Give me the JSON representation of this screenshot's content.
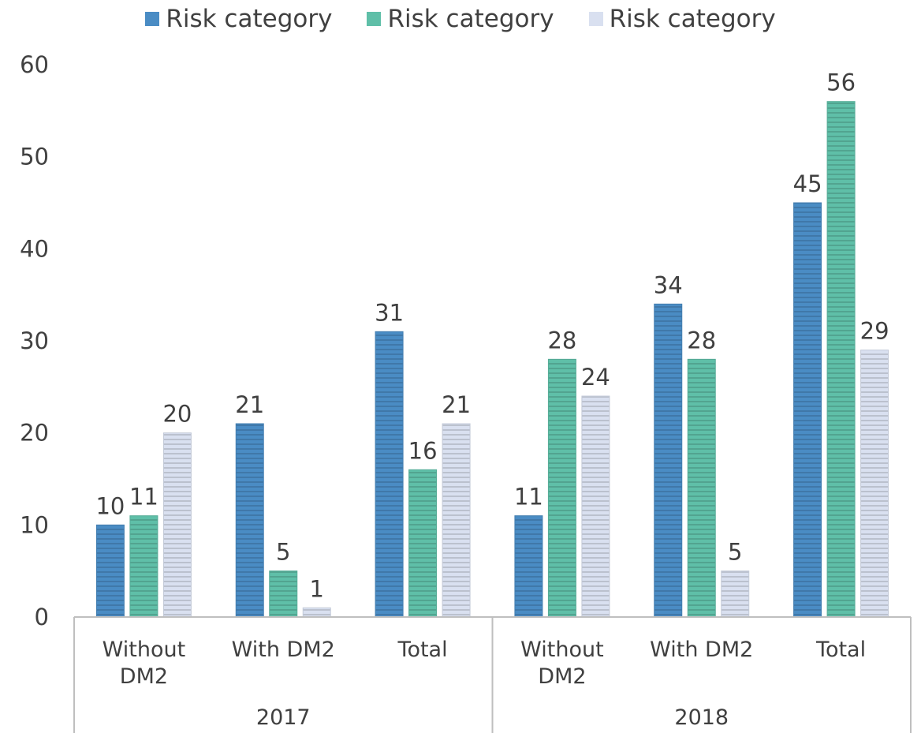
{
  "chart_data": {
    "type": "bar",
    "title": "",
    "xlabel": "",
    "ylabel": "",
    "ylim": [
      0,
      60
    ],
    "yticks": [
      "0",
      "10",
      "20",
      "30",
      "40",
      "50",
      "60"
    ],
    "grid": false,
    "legend_position": "top-center",
    "groups": [
      {
        "label": "2017",
        "categories": [
          "Without DM2",
          "With DM2",
          "Total"
        ]
      },
      {
        "label": "2018",
        "categories": [
          "Without DM2",
          "With DM2",
          "Total"
        ]
      }
    ],
    "categories": [
      "Without DM2",
      "With DM2",
      "Total",
      "Without DM2",
      "With DM2",
      "Total"
    ],
    "category_lines": [
      [
        "Without",
        "DM2"
      ],
      [
        "With DM2"
      ],
      [
        "Total"
      ],
      [
        "Without",
        "DM2"
      ],
      [
        "With DM2"
      ],
      [
        "Total"
      ]
    ],
    "series": [
      {
        "name": "Risk category",
        "color": "#4a8cc4",
        "values": [
          10,
          21,
          31,
          11,
          34,
          45
        ]
      },
      {
        "name": "Risk category",
        "color": "#5fbfa8",
        "values": [
          11,
          5,
          16,
          28,
          28,
          56
        ]
      },
      {
        "name": "Risk category",
        "color": "#d9e0f0",
        "values": [
          20,
          1,
          21,
          24,
          5,
          29
        ]
      }
    ]
  }
}
